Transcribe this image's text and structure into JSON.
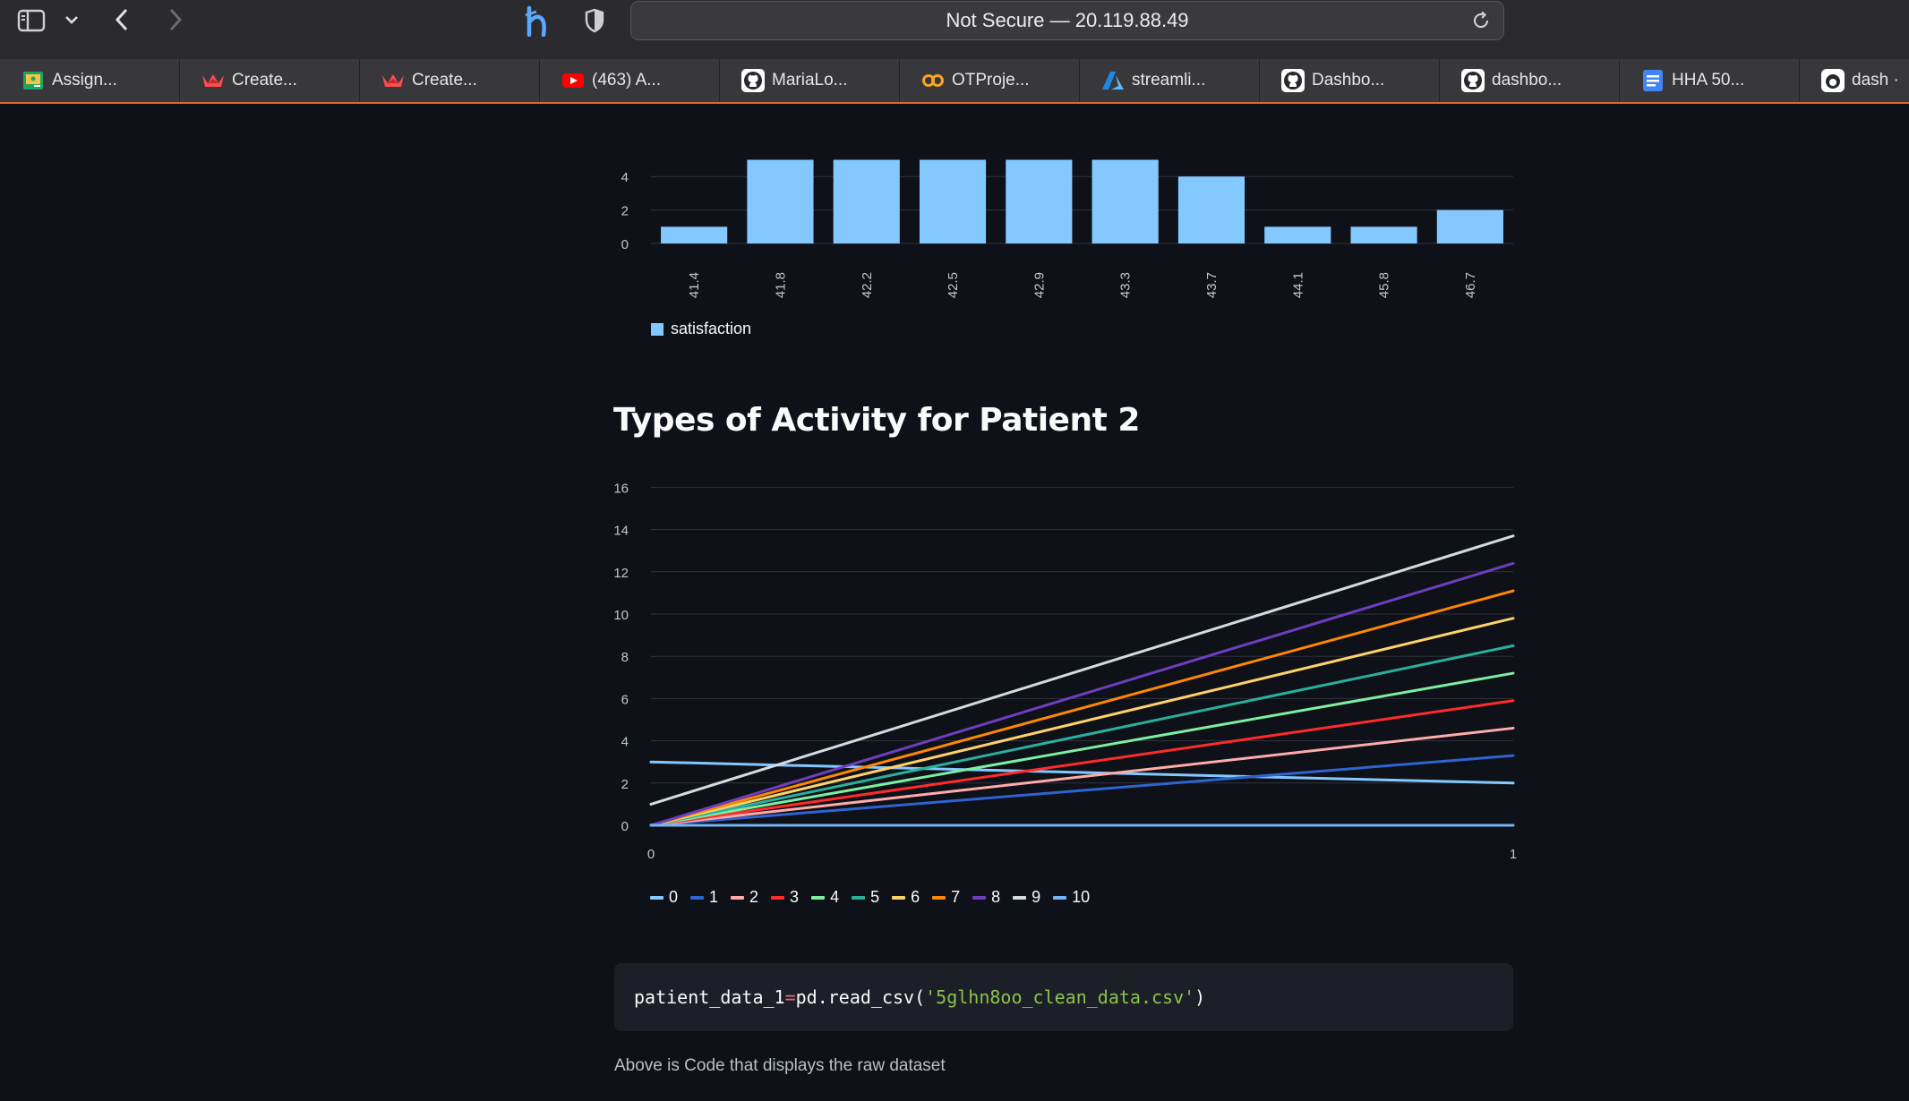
{
  "browser": {
    "address_text": "Not Secure — 20.119.88.49",
    "bookmarks": [
      {
        "label": "Assign...",
        "icon": "classroom-icon"
      },
      {
        "label": "Create...",
        "icon": "crown-icon"
      },
      {
        "label": "Create...",
        "icon": "crown-icon"
      },
      {
        "label": "(463) A...",
        "icon": "youtube-icon"
      },
      {
        "label": "MariaLo...",
        "icon": "github-icon"
      },
      {
        "label": "OTProje...",
        "icon": "infinity-icon"
      },
      {
        "label": "streamli...",
        "icon": "azure-icon"
      },
      {
        "label": "Dashbo...",
        "icon": "github-icon"
      },
      {
        "label": "dashbo...",
        "icon": "github-icon"
      },
      {
        "label": "HHA 50...",
        "icon": "docs-icon"
      },
      {
        "label": "dash ·",
        "icon": "kaggle-icon"
      }
    ]
  },
  "chart_data": [
    {
      "type": "bar",
      "categories": [
        "41.4",
        "41.8",
        "42.2",
        "42.5",
        "42.9",
        "43.3",
        "43.7",
        "44.1",
        "45.8",
        "46.7"
      ],
      "series": [
        {
          "name": "satisfaction",
          "values": [
            1,
            5,
            5,
            5,
            5,
            5,
            4,
            1,
            1,
            2
          ]
        }
      ],
      "yticks": [
        "0",
        "2",
        "4"
      ],
      "ylim": [
        0,
        5
      ],
      "grid": true,
      "legend_position": "bottom-left",
      "colors": [
        "#83c9ff"
      ]
    },
    {
      "type": "line",
      "title": "Types of Activity for Patient 2",
      "x": [
        0,
        1
      ],
      "xticks": [
        "0",
        "1"
      ],
      "yticks": [
        "0",
        "2",
        "4",
        "6",
        "8",
        "10",
        "12",
        "14",
        "16"
      ],
      "ylim": [
        0,
        16
      ],
      "grid": true,
      "legend_position": "bottom-left",
      "series": [
        {
          "name": "0",
          "values": [
            3.0,
            2.0
          ],
          "color": "#83c9ff"
        },
        {
          "name": "1",
          "values": [
            0,
            3.3
          ],
          "color": "#2e64d1"
        },
        {
          "name": "2",
          "values": [
            0,
            4.6
          ],
          "color": "#ffabab"
        },
        {
          "name": "3",
          "values": [
            0,
            5.9
          ],
          "color": "#ff2b2b"
        },
        {
          "name": "4",
          "values": [
            0,
            7.2
          ],
          "color": "#7defa1"
        },
        {
          "name": "5",
          "values": [
            0,
            8.5
          ],
          "color": "#29b09d"
        },
        {
          "name": "6",
          "values": [
            0,
            9.8
          ],
          "color": "#ffd16a"
        },
        {
          "name": "7",
          "values": [
            0,
            11.1
          ],
          "color": "#ff8700"
        },
        {
          "name": "8",
          "values": [
            0,
            12.4
          ],
          "color": "#6d3fc0"
        },
        {
          "name": "9",
          "values": [
            1.0,
            13.7
          ],
          "color": "#d5dae5"
        },
        {
          "name": "10",
          "values": [
            0,
            0
          ],
          "color": "#74b4f6"
        }
      ]
    }
  ],
  "code": {
    "var": "patient_data_1",
    "op": "=",
    "call": "pd.read_csv(",
    "arg": "'5glhn8oo_clean_data.csv'",
    "close": ")"
  },
  "caption": "Above is Code that displays the raw dataset"
}
